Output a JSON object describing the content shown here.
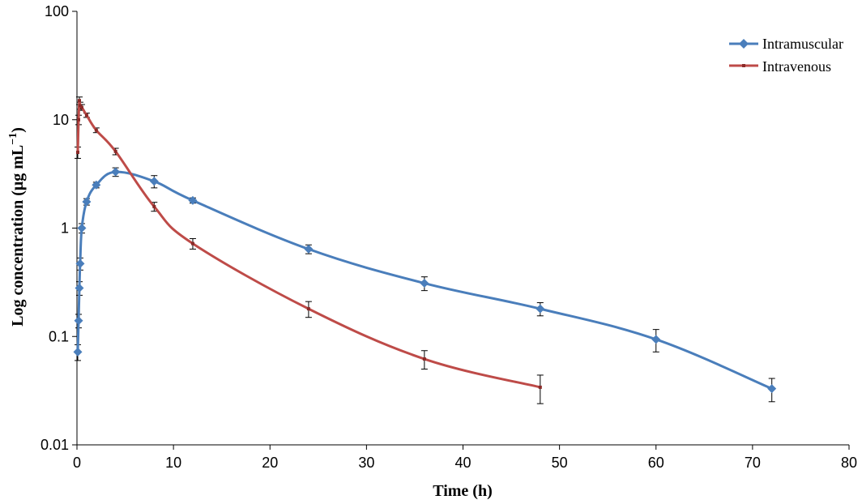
{
  "chart_data": {
    "type": "line",
    "title": "",
    "xlabel": "Time (h)",
    "ylabel": "Log concentration (μg mL⁻¹)",
    "ylabel_parts": {
      "main": "Log concentration (μg mL",
      "sup": "−1",
      "close": ")"
    },
    "xlim": [
      0,
      80
    ],
    "ylim": [
      0.01,
      100
    ],
    "yscale": "log",
    "x_ticks": [
      0,
      10,
      20,
      30,
      40,
      50,
      60,
      70,
      80
    ],
    "y_ticks": [
      0.01,
      0.1,
      1,
      10,
      100
    ],
    "y_tick_labels": [
      "0.01",
      "0.1",
      "1",
      "10",
      "100"
    ],
    "grid": false,
    "legend_position": "top-right",
    "series": [
      {
        "name": "Intramuscular",
        "color": "#4a7ebb",
        "marker": "diamond",
        "x": [
          0.083,
          0.167,
          0.25,
          0.33,
          0.5,
          1,
          2,
          4,
          8,
          12,
          24,
          36,
          48,
          60,
          72
        ],
        "y": [
          0.072,
          0.14,
          0.28,
          0.47,
          1.0,
          1.75,
          2.5,
          3.3,
          2.7,
          1.8,
          0.64,
          0.31,
          0.18,
          0.094,
          0.033
        ],
        "err": [
          0.012,
          0.02,
          0.04,
          0.06,
          0.1,
          0.12,
          0.15,
          0.3,
          0.35,
          0.1,
          0.06,
          0.045,
          0.025,
          0.022,
          0.008
        ]
      },
      {
        "name": "Intravenous",
        "color": "#be4b48",
        "marker": "square",
        "x": [
          0.083,
          0.167,
          0.25,
          0.33,
          0.5,
          1,
          2,
          4,
          8,
          12,
          24,
          36,
          48
        ],
        "y": [
          5.0,
          10.0,
          15.0,
          13.5,
          13.0,
          11.0,
          8.0,
          5.1,
          1.58,
          0.72,
          0.18,
          0.062,
          0.034
        ],
        "err": [
          0.6,
          1.0,
          1.2,
          1.0,
          0.8,
          0.5,
          0.4,
          0.35,
          0.15,
          0.08,
          0.03,
          0.012,
          0.01
        ]
      }
    ]
  }
}
